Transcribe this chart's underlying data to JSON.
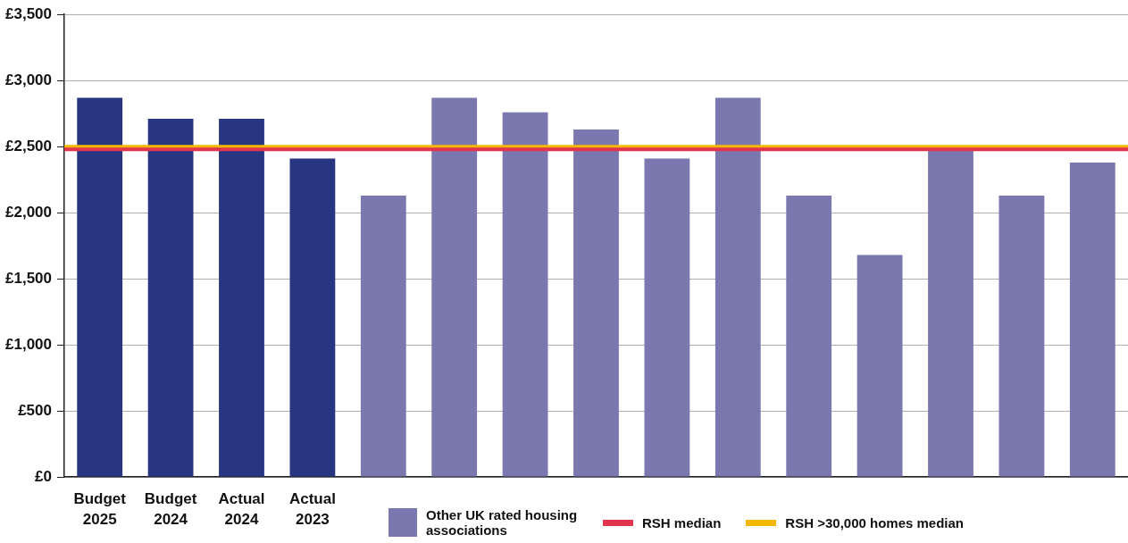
{
  "chart_data": {
    "type": "bar",
    "categories": [
      "Budget 2025",
      "Budget 2024",
      "Actual 2024",
      "Actual 2023",
      null,
      null,
      null,
      null,
      null,
      null,
      null,
      null,
      null,
      null,
      null
    ],
    "series": [
      {
        "color": "#283580",
        "values": [
          2870,
          2710,
          2710,
          2410,
          null,
          null,
          null,
          null,
          null,
          null,
          null,
          null,
          null,
          null,
          null
        ]
      },
      {
        "name": "Other UK rated housing associations",
        "color": "#7b78b0",
        "values": [
          null,
          null,
          null,
          null,
          2130,
          2870,
          2760,
          2630,
          2410,
          2870,
          2130,
          1680,
          2470,
          2130,
          2380
        ]
      }
    ],
    "ylim": [
      0,
      3500
    ],
    "yticks": [
      {
        "value": 0,
        "label": "£0"
      },
      {
        "value": 500,
        "label": "£500"
      },
      {
        "value": 1000,
        "label": "£1,000"
      },
      {
        "value": 1500,
        "label": "£1,500"
      },
      {
        "value": 2000,
        "label": "£2,000"
      },
      {
        "value": 2500,
        "label": "£2,500"
      },
      {
        "value": 3000,
        "label": "£3,000"
      },
      {
        "value": 3500,
        "label": "£3,500"
      }
    ],
    "ref_lines": [
      {
        "axis": "y",
        "value": 2500,
        "label": "RSH >30,000 homes median",
        "color": "#f5b800"
      },
      {
        "axis": "y",
        "value": 2480,
        "label": "RSH median",
        "color": "#e0344f"
      }
    ],
    "grid": "y",
    "legend": "bottom"
  }
}
